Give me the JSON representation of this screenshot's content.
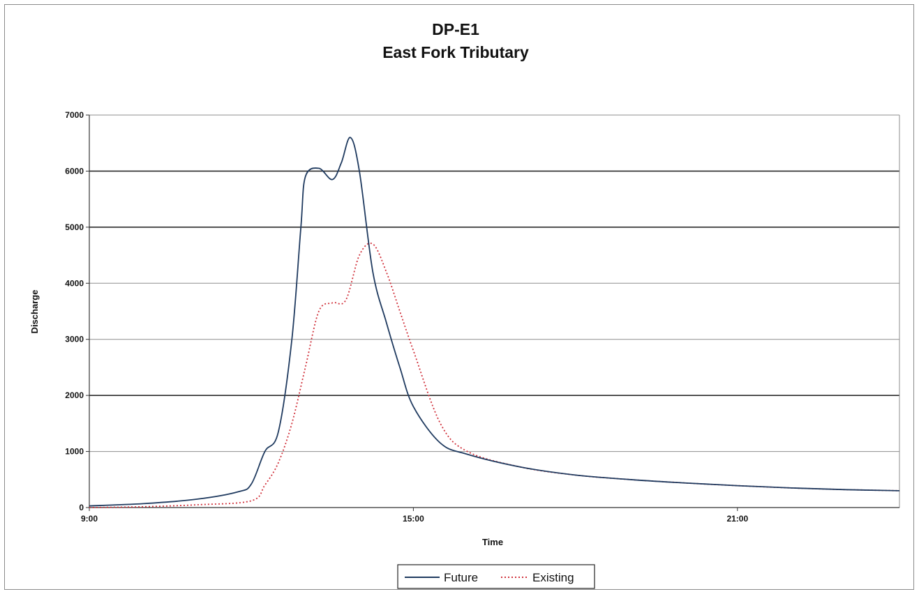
{
  "chart_data": {
    "type": "line",
    "title": "DP-E1",
    "subtitle": "East Fork Tributary",
    "xlabel": "Time",
    "ylabel": "Discharge",
    "xlim": [
      "9:00",
      "24:00"
    ],
    "ylim": [
      0,
      7000
    ],
    "x_ticks": [
      "9:00",
      "15:00",
      "21:00"
    ],
    "y_ticks": [
      0,
      1000,
      2000,
      3000,
      4000,
      5000,
      6000,
      7000
    ],
    "grid": true,
    "legend_position": "bottom",
    "series": [
      {
        "name": "Future",
        "color": "#1f3a5f",
        "style": "solid",
        "x": [
          "9:00",
          "10:00",
          "11:00",
          "11:45",
          "12:00",
          "12:15",
          "12:30",
          "12:45",
          "12:55",
          "13:00",
          "13:15",
          "13:30",
          "13:40",
          "13:50",
          "14:00",
          "14:15",
          "14:30",
          "14:45",
          "15:00",
          "15:30",
          "16:00",
          "17:00",
          "18:00",
          "19:00",
          "20:00",
          "21:00",
          "22:00",
          "23:00",
          "24:00"
        ],
        "values": [
          30,
          70,
          150,
          280,
          420,
          1000,
          1350,
          3000,
          5000,
          5900,
          6050,
          5850,
          6150,
          6600,
          6000,
          4200,
          3300,
          2500,
          1800,
          1150,
          950,
          720,
          580,
          500,
          440,
          390,
          350,
          320,
          300
        ]
      },
      {
        "name": "Existing",
        "color": "#d0303a",
        "style": "dotted",
        "x": [
          "9:00",
          "10:00",
          "11:00",
          "12:00",
          "12:15",
          "12:30",
          "12:45",
          "13:00",
          "13:15",
          "13:30",
          "13:45",
          "14:00",
          "14:15",
          "14:30",
          "14:45",
          "15:00",
          "15:30",
          "16:00",
          "17:00",
          "18:00",
          "19:00",
          "20:00",
          "21:00",
          "22:00",
          "23:00",
          "24:00"
        ],
        "values": [
          0,
          15,
          50,
          120,
          400,
          800,
          1500,
          2500,
          3500,
          3650,
          3700,
          4500,
          4700,
          4200,
          3500,
          2800,
          1500,
          1000,
          720,
          580,
          500,
          440,
          390,
          350,
          320,
          300
        ]
      }
    ]
  }
}
